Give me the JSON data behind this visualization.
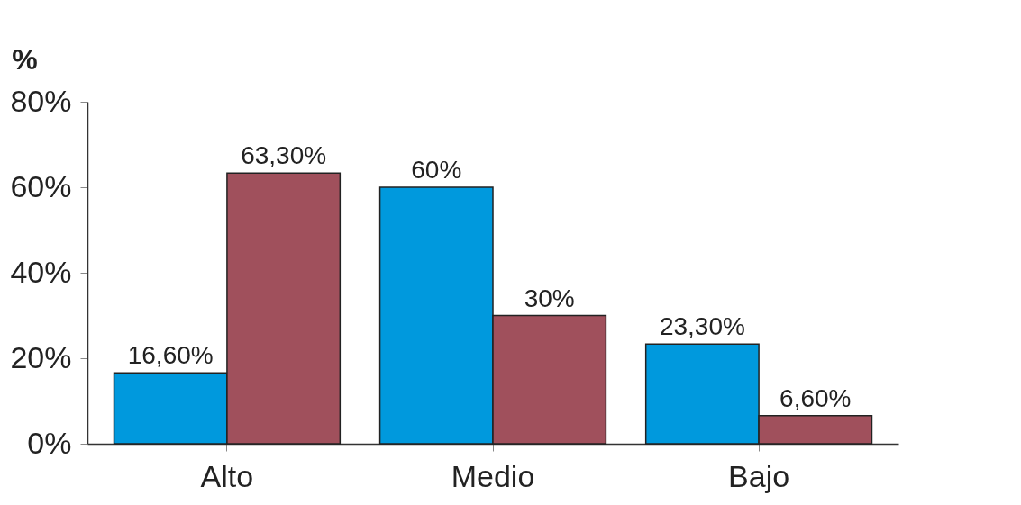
{
  "chart_data": {
    "type": "bar",
    "ylabel": "%",
    "categories": [
      "Alto",
      "Medio",
      "Bajo"
    ],
    "series": [
      {
        "color": "#0099dd",
        "values": [
          16.6,
          60,
          23.3
        ],
        "value_labels": [
          "16,60%",
          "60%",
          "23,30%"
        ]
      },
      {
        "color": "#a0505c",
        "values": [
          63.3,
          30,
          6.6
        ],
        "value_labels": [
          "63,30%",
          "30%",
          "6,60%"
        ]
      }
    ],
    "ylim": [
      0,
      80
    ],
    "yticks": [
      {
        "value": 0,
        "label": "0%"
      },
      {
        "value": 20,
        "label": "20%"
      },
      {
        "value": 40,
        "label": "40%"
      },
      {
        "value": 60,
        "label": "60%"
      },
      {
        "value": 80,
        "label": "80%"
      }
    ],
    "grid": false,
    "legend": false
  }
}
